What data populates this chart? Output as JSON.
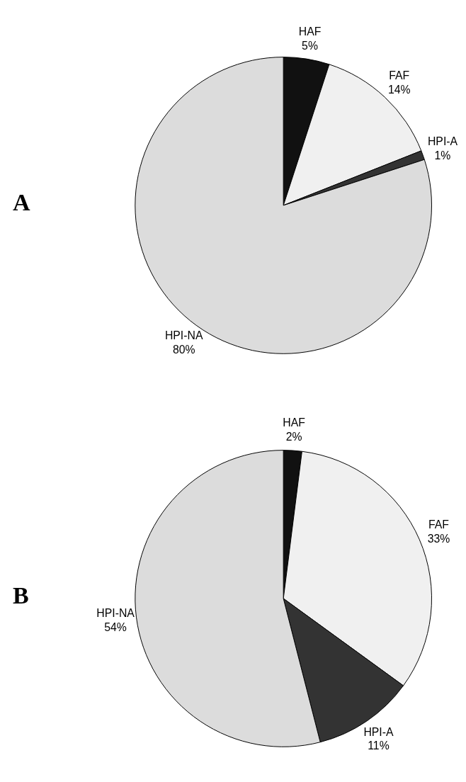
{
  "chart_data": [
    {
      "type": "pie",
      "title": "A",
      "categories": [
        "HAF",
        "FAF",
        "HPI-A",
        "HPI-NA"
      ],
      "values": [
        5,
        14,
        1,
        80
      ],
      "value_labels": [
        "5%",
        "14%",
        "1%",
        "80%"
      ],
      "colors": [
        "#111111",
        "#f0f0f0",
        "#333333",
        "#dcdcdc"
      ]
    },
    {
      "type": "pie",
      "title": "B",
      "categories": [
        "HAF",
        "FAF",
        "HPI-A",
        "HPI-NA"
      ],
      "values": [
        2,
        33,
        11,
        54
      ],
      "value_labels": [
        "2%",
        "33%",
        "11%",
        "54%"
      ],
      "colors": [
        "#111111",
        "#f0f0f0",
        "#333333",
        "#dcdcdc"
      ]
    }
  ]
}
